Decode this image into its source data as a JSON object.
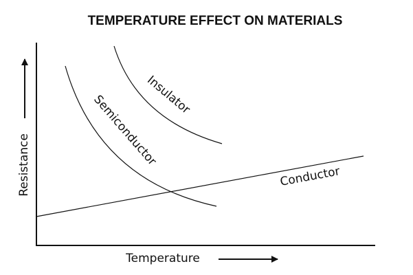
{
  "chart_data": {
    "type": "line",
    "title": "TEMPERATURE EFFECT ON MATERIALS",
    "xlabel": "Temperature",
    "ylabel": "Resistance",
    "x_ticks": "none",
    "y_ticks": "none",
    "grid": false,
    "legend": "none",
    "series": [
      {
        "name": "Insulator",
        "shape": "decreasing-curve",
        "color": "#111111"
      },
      {
        "name": "Semiconductor",
        "shape": "decreasing-curve",
        "color": "#111111"
      },
      {
        "name": "Conductor",
        "shape": "increasing-line",
        "color": "#111111"
      }
    ]
  },
  "icons": {
    "y_arrow": "arrow-up-icon",
    "x_arrow": "arrow-right-icon"
  }
}
